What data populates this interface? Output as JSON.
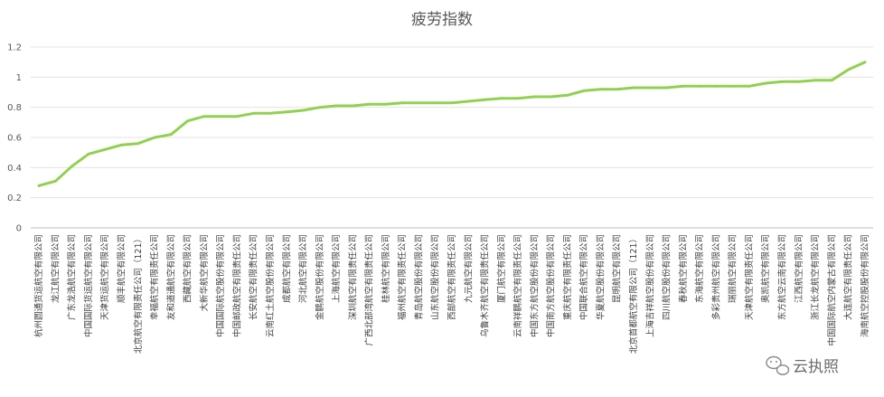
{
  "chart_data": {
    "type": "line",
    "title": "疲劳指数",
    "xlabel": "",
    "ylabel": "",
    "ylim": [
      0,
      1.2
    ],
    "yticks": [
      "0",
      "0.2",
      "0.4",
      "0.6",
      "0.8",
      "1",
      "1.2"
    ],
    "grid": true,
    "legend": "none",
    "line_color": "#92d050",
    "categories": [
      "杭州圆通货运航空有限公司",
      "龙江航空有限公司",
      "广东龙浩航空有限公司",
      "中国国际货运航空有限公司",
      "天津货运航空有限公司",
      "顺丰航空有限公司",
      "北京航空有限责任公司（121）",
      "幸福航空有限责任公司",
      "友和道通航空有限公司",
      "西藏航空有限公司",
      "大新华航空有限公司",
      "中国国际航空股份有限公司",
      "中国邮政航空有限责任公司",
      "长安航空有限责任公司",
      "云南红土航空股份有限公司",
      "成都航空有限公司",
      "河北航空有限公司",
      "金鹏航空股份有限公司",
      "上海航空有限公司",
      "深圳航空有限责任公司",
      "广西北部湾航空有限责任公司",
      "桂林航空有限公司",
      "福州航空有限责任公司",
      "青岛航空股份有限公司",
      "山东航空股份有限公司",
      "西部航空有限责任公司",
      "九元航空有限公司",
      "乌鲁木齐航空有限责任公司",
      "厦门航空有限公司",
      "云南祥鹏航空有限责任公司",
      "中国东方航空股份有限公司",
      "中国南方航空股份有限公司",
      "重庆航空有限责任公司",
      "中国联合航空有限公司",
      "华夏航空股份有限公司",
      "昆明航空有限公司",
      "北京首都航空有限公司（121）",
      "上海吉祥航空股份有限公司",
      "四川航空股份有限公司",
      "春秋航空有限公司",
      "东海航空有限公司",
      "多彩贵州航空有限公司",
      "瑞丽航空有限公司",
      "天津航空有限责任公司",
      "奥凯航空有限公司",
      "东方航空云南有限公司",
      "江西航空有限公司",
      "浙江长龙航空有限公司",
      "中国国际航空内蒙古有限公司",
      "大连航空有限责任公司",
      "海南航空控股股份有限公司"
    ],
    "values": [
      0.28,
      0.31,
      0.41,
      0.49,
      0.52,
      0.55,
      0.56,
      0.6,
      0.62,
      0.71,
      0.74,
      0.74,
      0.74,
      0.76,
      0.76,
      0.77,
      0.78,
      0.8,
      0.81,
      0.81,
      0.82,
      0.82,
      0.83,
      0.83,
      0.83,
      0.83,
      0.84,
      0.85,
      0.86,
      0.86,
      0.87,
      0.87,
      0.88,
      0.91,
      0.92,
      0.92,
      0.93,
      0.93,
      0.93,
      0.94,
      0.94,
      0.94,
      0.94,
      0.94,
      0.96,
      0.97,
      0.97,
      0.98,
      0.98,
      1.05,
      1.1
    ]
  },
  "watermark": {
    "text": "云执照",
    "icon": "wechat-icon"
  }
}
